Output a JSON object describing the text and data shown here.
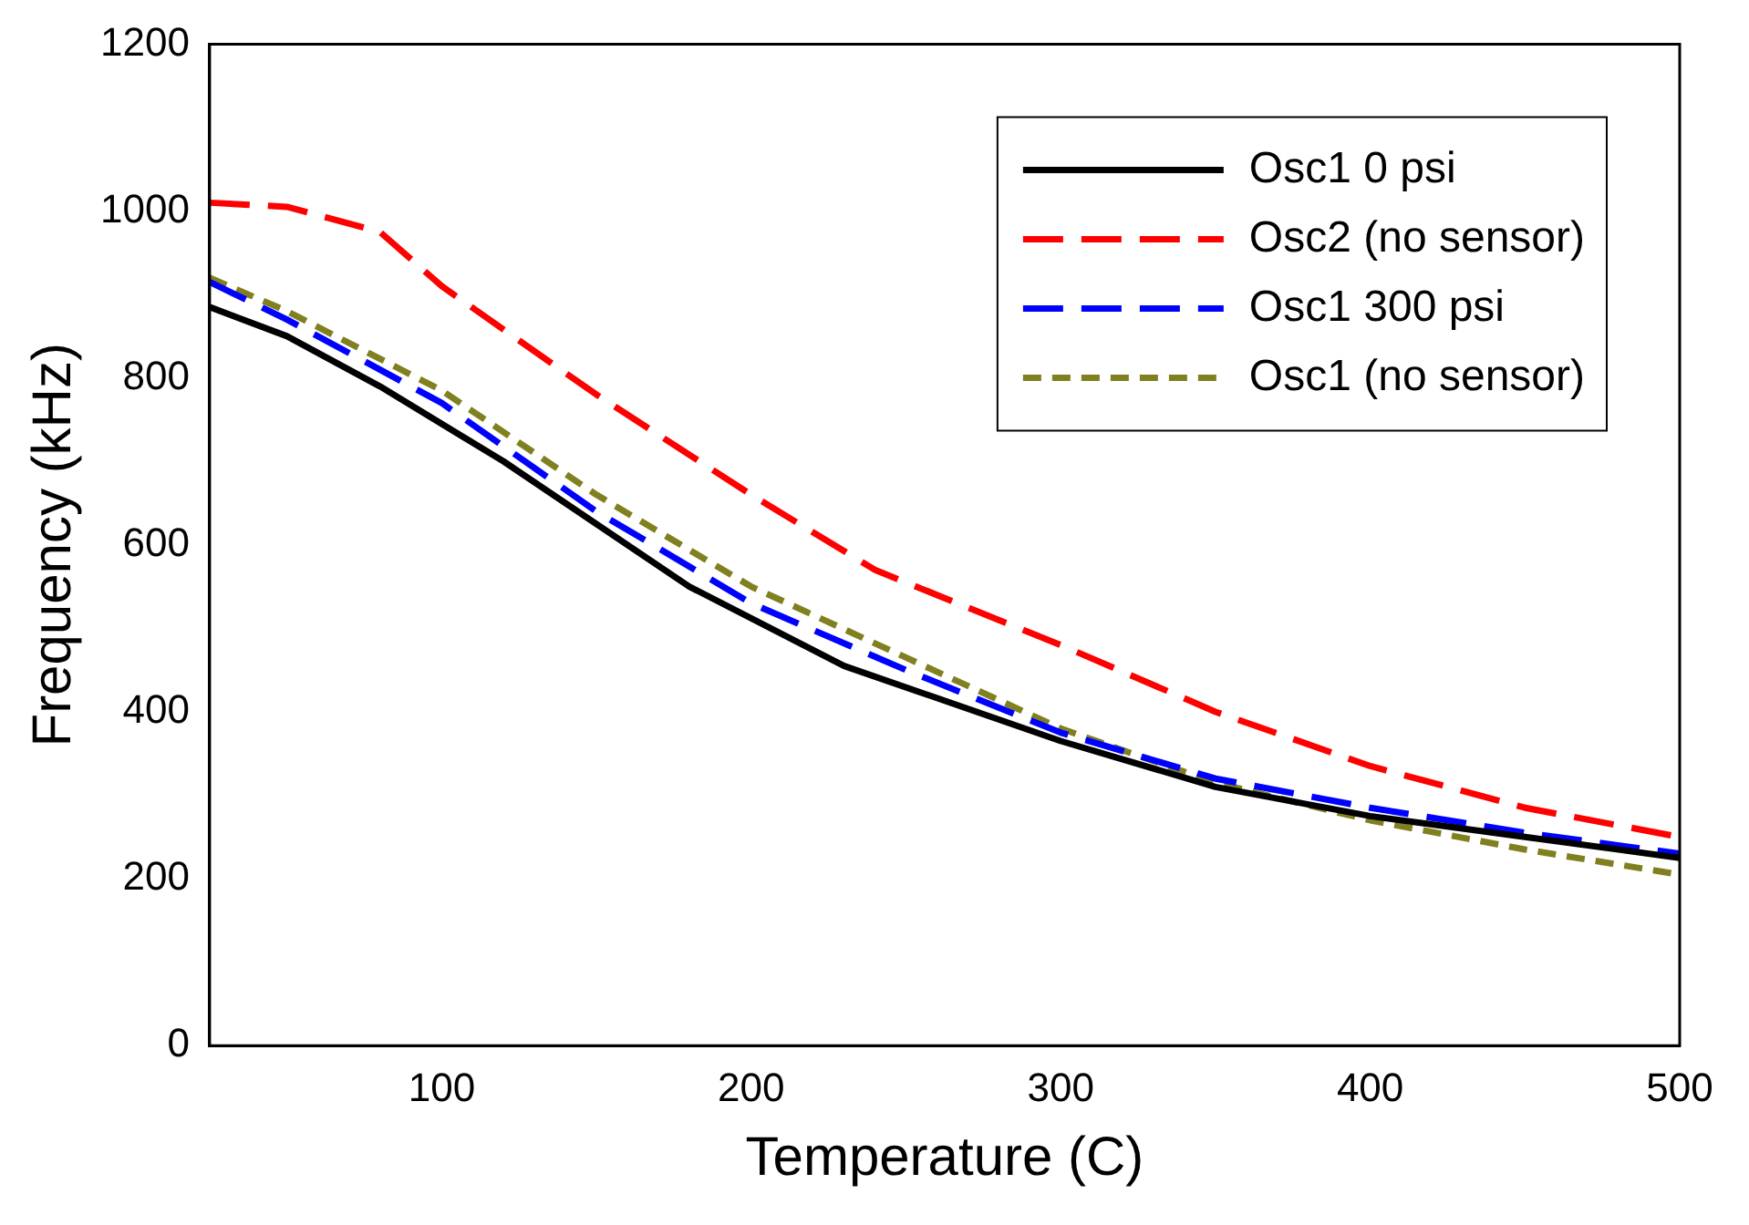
{
  "chart_data": {
    "type": "line",
    "xlabel": "Temperature (C)",
    "ylabel": "Frequency (kHz)",
    "xlim": [
      25,
      500
    ],
    "xticks": [
      100,
      200,
      300,
      400,
      500
    ],
    "ylim": [
      0,
      1200
    ],
    "yticks": [
      0,
      200,
      400,
      600,
      800,
      1000,
      1200
    ],
    "grid": false,
    "legend": "top right",
    "marker": "none",
    "series": [
      {
        "name": "Osc1 0 psi",
        "color": "#000000",
        "line_style": "solid",
        "x": [
          25,
          50,
          80,
          120,
          180,
          230,
          300,
          350,
          400,
          450,
          500
        ],
        "values": [
          885,
          850,
          790,
          700,
          550,
          455,
          365,
          310,
          275,
          250,
          225
        ]
      },
      {
        "name": "Osc2 (no sensor)",
        "color": "#ff0000",
        "line_style": "dashed",
        "x": [
          25,
          50,
          80,
          100,
          150,
          200,
          240,
          300,
          350,
          400,
          450,
          500
        ],
        "values": [
          1010,
          1005,
          975,
          910,
          780,
          660,
          570,
          480,
          400,
          335,
          285,
          250
        ]
      },
      {
        "name": "Osc1 300 psi",
        "color": "#0000ff",
        "line_style": "dashed",
        "x": [
          25,
          50,
          100,
          150,
          200,
          250,
          300,
          350,
          400,
          450,
          500
        ],
        "values": [
          915,
          870,
          770,
          640,
          530,
          450,
          375,
          320,
          285,
          255,
          230
        ]
      },
      {
        "name": "Osc1 (no sensor)",
        "color": "#808020",
        "line_style": "dotted",
        "x": [
          25,
          50,
          100,
          150,
          200,
          250,
          300,
          350,
          400,
          450,
          500
        ],
        "values": [
          920,
          880,
          785,
          660,
          550,
          465,
          380,
          315,
          270,
          235,
          205
        ]
      }
    ]
  }
}
